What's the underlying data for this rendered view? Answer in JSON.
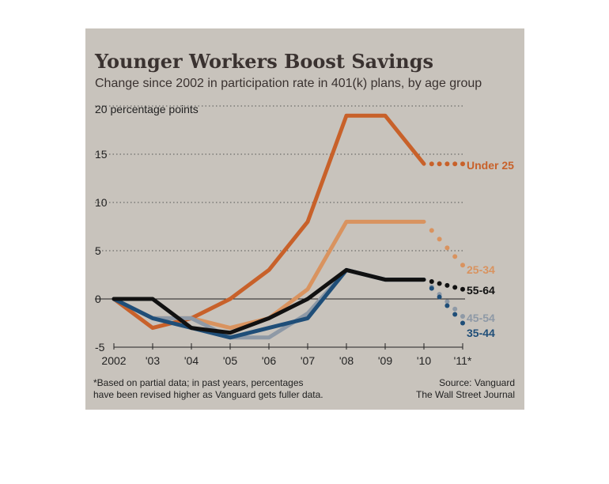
{
  "chart_data": {
    "type": "line",
    "title": "Younger Workers Boost Savings",
    "subtitle": "Change since 2002 in participation rate in 401(k) plans, by age group",
    "ylabel": "20 percentage points",
    "x": [
      "2002",
      "'03",
      "'04",
      "'05",
      "'06",
      "'07",
      "'08",
      "'09",
      "'10",
      "'11*"
    ],
    "ylim": [
      -5,
      20
    ],
    "yticks": [
      "-5",
      "0",
      "5",
      "10",
      "15"
    ],
    "grid": "horizontal dotted",
    "series": [
      {
        "name": "Under 25",
        "color": "#c8612a",
        "values": [
          0,
          -3,
          -2,
          0,
          3,
          8,
          19,
          19,
          14,
          14
        ]
      },
      {
        "name": "25-34",
        "color": "#d9935f",
        "values": [
          0,
          -2,
          -2,
          -3,
          -2,
          1,
          8,
          8,
          8,
          3.5
        ]
      },
      {
        "name": "55-64",
        "color": "#111111",
        "values": [
          0,
          0,
          -3,
          -3.5,
          -2,
          0,
          3,
          2,
          2,
          1
        ]
      },
      {
        "name": "45-54",
        "color": "#8e99a6",
        "values": [
          0,
          -2,
          -2,
          -4,
          -4,
          -1.5,
          3,
          2,
          2,
          -1.8
        ]
      },
      {
        "name": "35-44",
        "color": "#1f4e78",
        "values": [
          0,
          -2,
          -3,
          -4,
          -3,
          -2,
          3,
          2,
          2,
          -2.5
        ]
      }
    ],
    "partial_from_index": 8,
    "footnote": [
      "*Based on partial data; in past years, percentages",
      "have been revised higher as Vanguard gets fuller data."
    ],
    "source": [
      "Source: Vanguard",
      "The Wall Street Journal"
    ]
  }
}
